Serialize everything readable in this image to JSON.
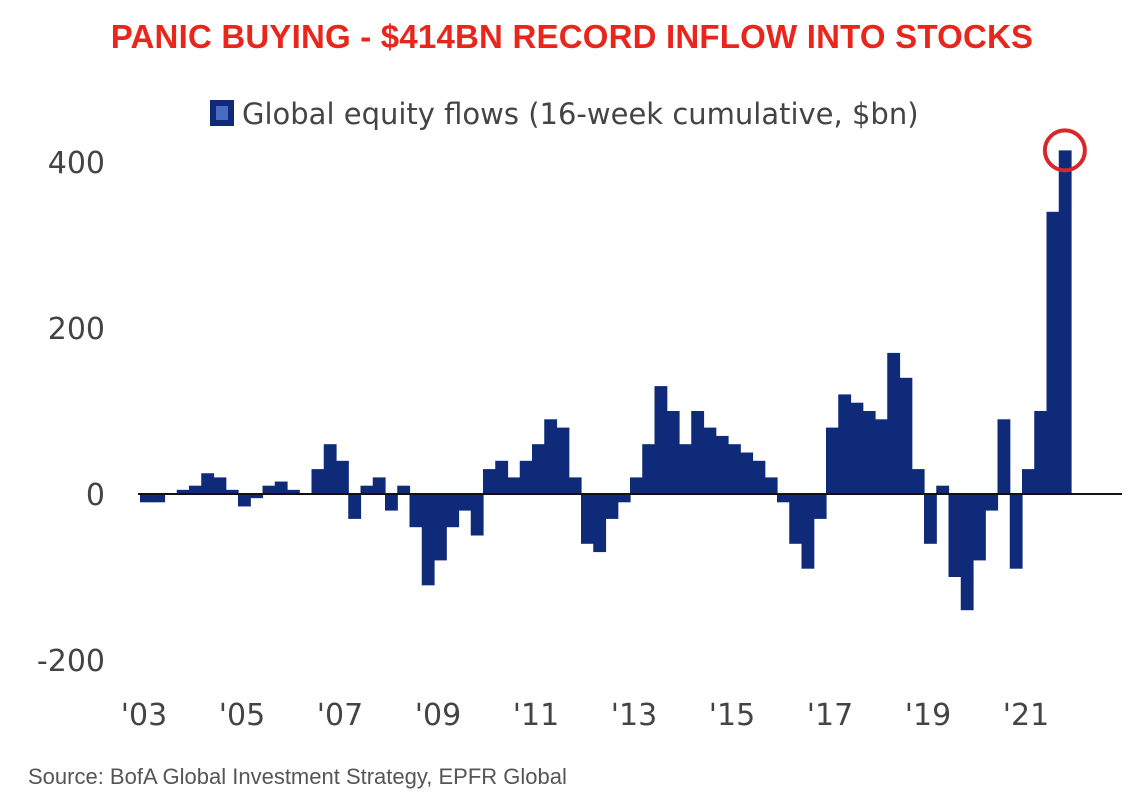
{
  "title": "PANIC BUYING - $414BN RECORD INFLOW INTO STOCKS",
  "source": "Source:  BofA Global Investment Strategy, EPFR Global",
  "colors": {
    "title": "#e8261c",
    "bars": "#0f2a78",
    "highlight": "#d9262c",
    "axis": "#111111"
  },
  "chart_data": {
    "type": "area",
    "title": "PANIC BUYING - $414BN RECORD INFLOW INTO STOCKS",
    "legend": "Global equity flows (16-week cumulative, $bn)",
    "legend_position": "top-left",
    "xlabel": "",
    "ylabel": "",
    "ylim": [
      -200,
      420
    ],
    "xlim": [
      2003,
      2023
    ],
    "yticks": [
      400,
      200,
      0,
      -200
    ],
    "ytick_labels": [
      "400",
      "200",
      "0",
      "-200"
    ],
    "xticks": [
      2003,
      2005,
      2007,
      2009,
      2011,
      2013,
      2015,
      2017,
      2019,
      2021
    ],
    "xtick_labels": [
      "'03",
      "'05",
      "'07",
      "'09",
      "'11",
      "'13",
      "'15",
      "'17",
      "'19",
      "'21"
    ],
    "grid": false,
    "annotation": {
      "label": "circled peak",
      "x": 2021.4,
      "y": 414
    },
    "x_start": 2003.0,
    "x_step": 0.25,
    "values": [
      -10,
      -10,
      0,
      5,
      10,
      25,
      20,
      5,
      -15,
      -5,
      10,
      15,
      5,
      0,
      30,
      60,
      40,
      -30,
      10,
      20,
      -20,
      10,
      -40,
      -110,
      -80,
      -40,
      -20,
      -50,
      30,
      40,
      20,
      40,
      60,
      90,
      80,
      20,
      -60,
      -70,
      -30,
      -10,
      20,
      60,
      130,
      100,
      60,
      100,
      80,
      70,
      60,
      50,
      40,
      20,
      -10,
      -60,
      -90,
      -30,
      80,
      120,
      110,
      100,
      90,
      170,
      140,
      30,
      -60,
      10,
      -100,
      -140,
      -80,
      -20,
      90,
      -90,
      30,
      100,
      340,
      414
    ]
  }
}
